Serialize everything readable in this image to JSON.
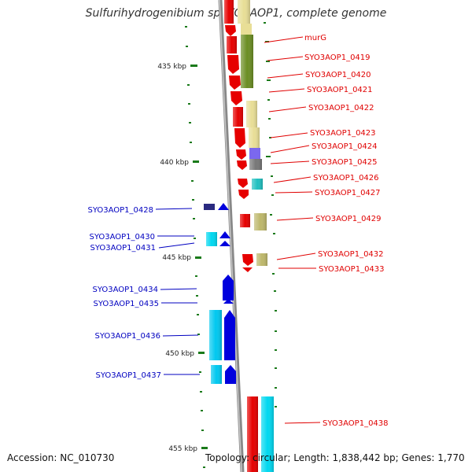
{
  "title": "Sulfurihydrogenibium sp. YO3AOP1, complete genome",
  "footer": {
    "accession": "Accession: NC_010730",
    "topology": "Topology: circular; Length: 1,838,442 bp; Genes: 1,770"
  },
  "scale_labels": [
    "435 kbp",
    "440 kbp",
    "445 kbp",
    "450 kbp",
    "455 kbp"
  ],
  "right_genes": [
    "murG",
    "SYO3AOP1_0419",
    "SYO3AOP1_0420",
    "SYO3AOP1_0421",
    "SYO3AOP1_0422",
    "SYO3AOP1_0423",
    "SYO3AOP1_0424",
    "SYO3AOP1_0425",
    "SYO3AOP1_0426",
    "SYO3AOP1_0427",
    "SYO3AOP1_0429",
    "SYO3AOP1_0432",
    "SYO3AOP1_0433",
    "SYO3AOP1_0438"
  ],
  "left_genes": [
    "SYO3AOP1_0428",
    "SYO3AOP1_0430",
    "SYO3AOP1_0431",
    "SYO3AOP1_0434",
    "SYO3AOP1_0435",
    "SYO3AOP1_0436",
    "SYO3AOP1_0437"
  ],
  "colors": {
    "right_label": "#e00000",
    "left_label": "#0000c0",
    "tick": "#1a7a1a",
    "backbone": "#888888",
    "cds_red": "#e60000",
    "cds_blue": "#0000dd",
    "olive": "#6b8e23",
    "khaki": "#e8de96",
    "grey": "#777777",
    "purple": "#7b68ee",
    "teal": "#20c0c0",
    "cyan": "#00d8f0",
    "navy": "#2a2a80",
    "tan": "#bdb76b"
  }
}
